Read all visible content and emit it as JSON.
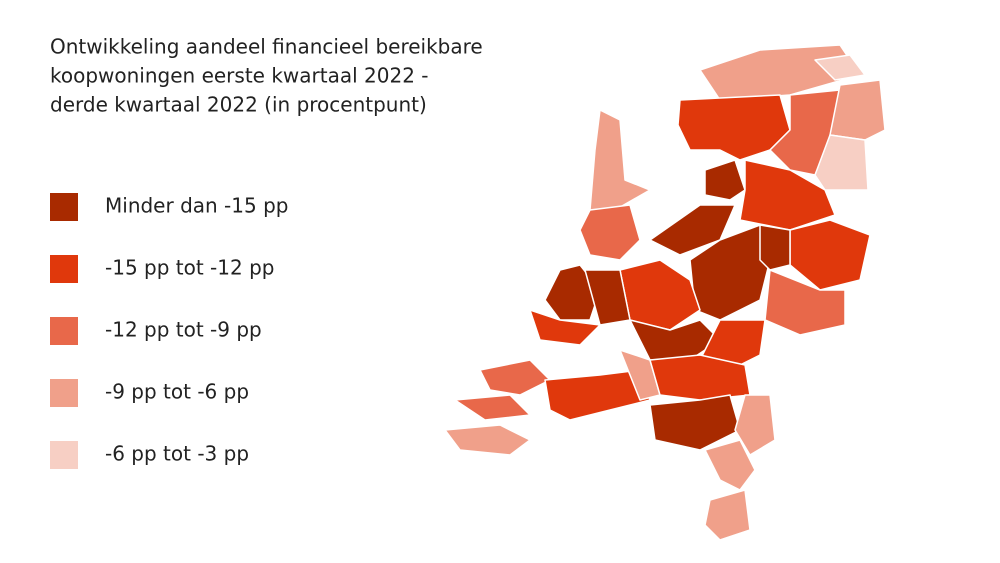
{
  "title_lines": [
    "Ontwikkeling aandeel financieel bereikbare",
    "koopwoningen eerste kwartaal 2022 -",
    "derde kwartaal 2022 (in procentpunt)"
  ],
  "legend": [
    {
      "label": "Minder dan -15 pp",
      "color": "#a82a00"
    },
    {
      "label": "-15 pp tot -12 pp",
      "color": "#e0380c"
    },
    {
      "label": "-12 pp tot -9 pp",
      "color": "#e8684a"
    },
    {
      "label": "-9 pp tot -6 pp",
      "color": "#f0a08a"
    },
    {
      "label": "-6 pp tot -3 pp",
      "color": "#f7cfc4"
    }
  ]
}
